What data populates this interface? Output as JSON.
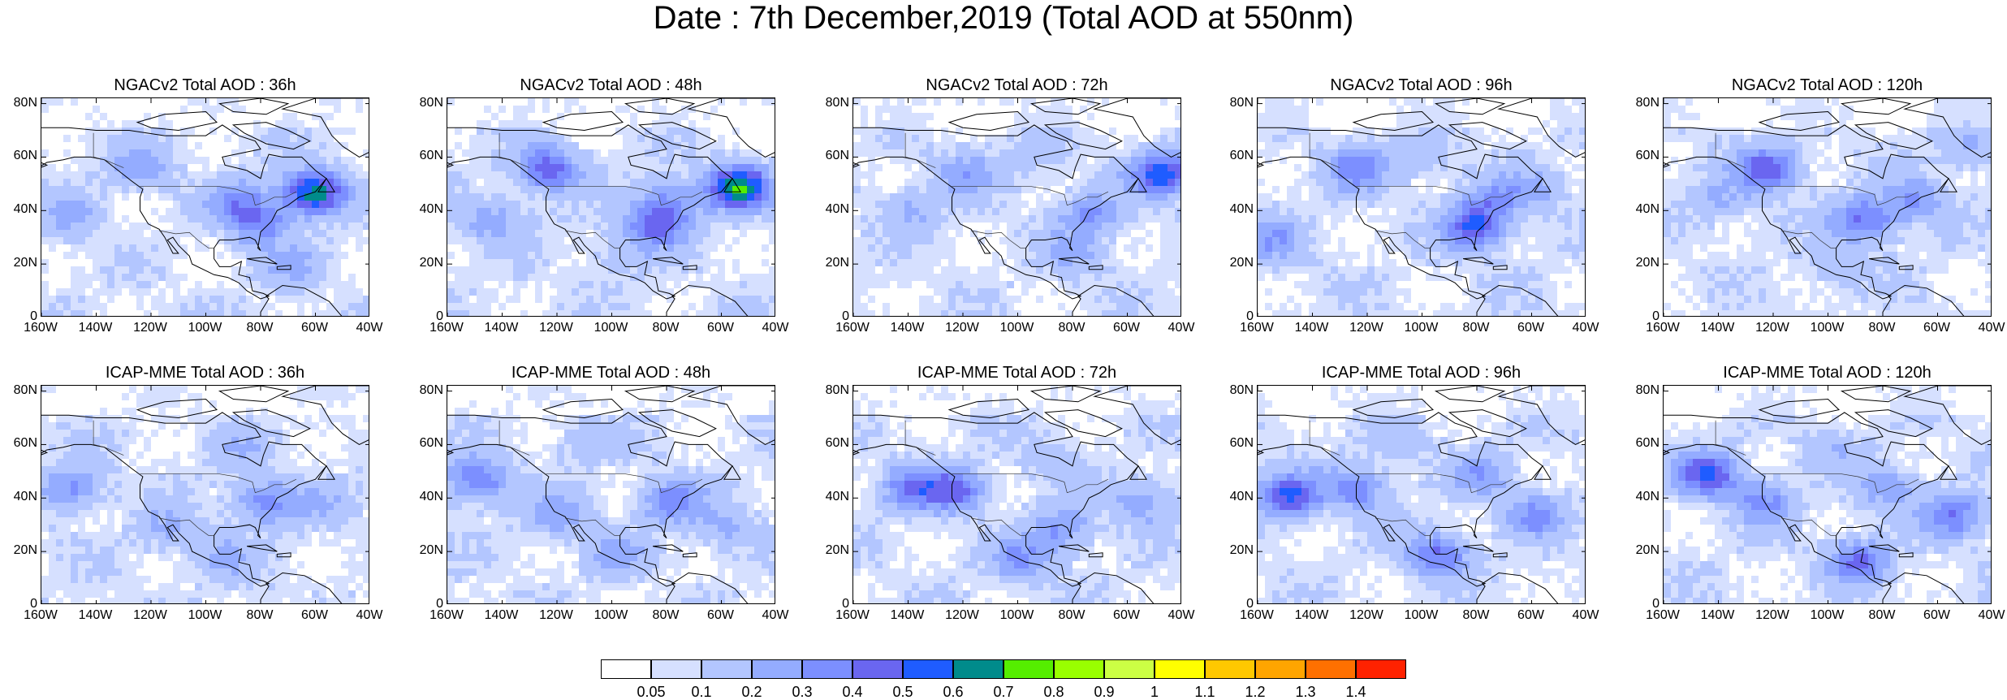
{
  "title": "Date : 7th December,2019 (Total AOD at 550nm)",
  "panels": [
    {
      "title": "NGACv2 Total AOD : 36h",
      "blobs": [
        [
          -62,
          48,
          0.6
        ],
        [
          -82,
          37,
          0.3
        ],
        [
          -125,
          57,
          0.2
        ],
        [
          -90,
          45,
          0.2
        ],
        [
          -150,
          40,
          0.15
        ],
        [
          -70,
          20,
          0.15
        ]
      ]
    },
    {
      "title": "NGACv2 Total AOD : 48h",
      "blobs": [
        [
          -55,
          50,
          0.6
        ],
        [
          -125,
          57,
          0.4
        ],
        [
          -85,
          36,
          0.35
        ],
        [
          -80,
          45,
          0.25
        ],
        [
          -145,
          38,
          0.2
        ],
        [
          -100,
          25,
          0.1
        ]
      ]
    },
    {
      "title": "NGACv2 Total AOD : 72h",
      "blobs": [
        [
          -48,
          55,
          0.5
        ],
        [
          -75,
          40,
          0.25
        ],
        [
          -120,
          55,
          0.2
        ],
        [
          -140,
          42,
          0.15
        ],
        [
          -80,
          25,
          0.15
        ],
        [
          -95,
          62,
          0.1
        ]
      ]
    },
    {
      "title": "NGACv2 Total AOD : 96h",
      "blobs": [
        [
          -82,
          35,
          0.45
        ],
        [
          -125,
          57,
          0.3
        ],
        [
          -155,
          30,
          0.2
        ],
        [
          -75,
          45,
          0.2
        ],
        [
          -60,
          50,
          0.15
        ],
        [
          -100,
          60,
          0.1
        ]
      ]
    },
    {
      "title": "NGACv2 Total AOD : 120h",
      "blobs": [
        [
          -88,
          38,
          0.35
        ],
        [
          -123,
          57,
          0.4
        ],
        [
          -70,
          45,
          0.25
        ],
        [
          -140,
          45,
          0.15
        ],
        [
          -50,
          65,
          0.15
        ],
        [
          -100,
          20,
          0.1
        ]
      ]
    },
    {
      "title": "ICAP-MME Total AOD : 36h",
      "blobs": [
        [
          -80,
          40,
          0.3
        ],
        [
          -150,
          45,
          0.25
        ],
        [
          -115,
          30,
          0.15
        ],
        [
          -95,
          20,
          0.15
        ],
        [
          -60,
          40,
          0.1
        ],
        [
          -90,
          60,
          0.1
        ]
      ]
    },
    {
      "title": "ICAP-MME Total AOD : 48h",
      "blobs": [
        [
          -150,
          48,
          0.35
        ],
        [
          -80,
          40,
          0.3
        ],
        [
          -120,
          35,
          0.2
        ],
        [
          -100,
          20,
          0.15
        ],
        [
          -60,
          30,
          0.15
        ],
        [
          -110,
          62,
          0.1
        ]
      ]
    },
    {
      "title": "ICAP-MME Total AOD : 72h",
      "blobs": [
        [
          -140,
          45,
          0.3
        ],
        [
          -85,
          30,
          0.25
        ],
        [
          -100,
          18,
          0.25
        ],
        [
          -55,
          40,
          0.2
        ],
        [
          -124,
          44,
          0.35
        ],
        [
          -90,
          55,
          0.1
        ]
      ]
    },
    {
      "title": "ICAP-MME Total AOD : 96h",
      "blobs": [
        [
          -150,
          42,
          0.45
        ],
        [
          -95,
          20,
          0.35
        ],
        [
          -125,
          45,
          0.3
        ],
        [
          -60,
          35,
          0.25
        ],
        [
          -80,
          50,
          0.2
        ],
        [
          -110,
          62,
          0.1
        ]
      ]
    },
    {
      "title": "ICAP-MME Total AOD : 120h",
      "blobs": [
        [
          -145,
          50,
          0.45
        ],
        [
          -90,
          18,
          0.35
        ],
        [
          -55,
          35,
          0.3
        ],
        [
          -125,
          40,
          0.25
        ],
        [
          -80,
          45,
          0.2
        ],
        [
          -100,
          60,
          0.1
        ]
      ]
    }
  ],
  "axes": {
    "lat_ticks": [
      "80N",
      "60N",
      "40N",
      "20N",
      "0"
    ],
    "lon_ticks": [
      "160W",
      "140W",
      "120W",
      "100W",
      "80W",
      "60W",
      "40W"
    ]
  },
  "colorbar": {
    "colors": [
      "#ffffff",
      "#d6e0ff",
      "#b3c6ff",
      "#94acff",
      "#7c8fff",
      "#6a66f0",
      "#1f5cff",
      "#008b8b",
      "#55ee00",
      "#99ff00",
      "#ccff44",
      "#ffff00",
      "#ffc800",
      "#ffa500",
      "#ff7000",
      "#ff2200"
    ],
    "labels": [
      "0.05",
      "0.1",
      "0.2",
      "0.3",
      "0.4",
      "0.5",
      "0.6",
      "0.7",
      "0.8",
      "0.9",
      "1",
      "1.1",
      "1.2",
      "1.3",
      "1.4"
    ]
  }
}
